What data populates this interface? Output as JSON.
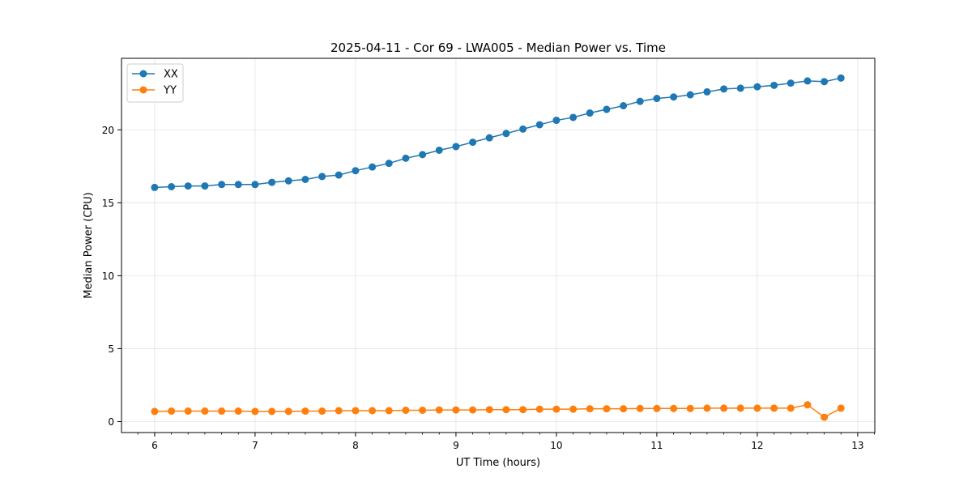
{
  "chart_data": {
    "type": "line",
    "title": "2025-04-11 - Cor 69 - LWA005 - Median Power vs. Time",
    "xlabel": "UT Time (hours)",
    "ylabel": "Median Power (CPU)",
    "xlim": [
      5.67,
      13.17
    ],
    "ylim": [
      -0.75,
      24.9
    ],
    "xticks": [
      6,
      7,
      8,
      9,
      10,
      11,
      12,
      13
    ],
    "yticks": [
      0,
      5,
      10,
      15,
      20
    ],
    "grid": true,
    "legend_position": "top-left",
    "x": [
      6.0,
      6.167,
      6.333,
      6.5,
      6.667,
      6.833,
      7.0,
      7.167,
      7.333,
      7.5,
      7.667,
      7.833,
      8.0,
      8.167,
      8.333,
      8.5,
      8.667,
      8.833,
      9.0,
      9.167,
      9.333,
      9.5,
      9.667,
      9.833,
      10.0,
      10.167,
      10.333,
      10.5,
      10.667,
      10.833,
      11.0,
      11.167,
      11.333,
      11.5,
      11.667,
      11.833,
      12.0,
      12.167,
      12.333,
      12.5,
      12.667,
      12.833
    ],
    "series": [
      {
        "name": "XX",
        "color": "#1f77b4",
        "values": [
          16.05,
          16.1,
          16.15,
          16.15,
          16.25,
          16.25,
          16.25,
          16.4,
          16.5,
          16.6,
          16.8,
          16.9,
          17.2,
          17.45,
          17.7,
          18.05,
          18.3,
          18.6,
          18.85,
          19.15,
          19.45,
          19.75,
          20.05,
          20.35,
          20.65,
          20.85,
          21.15,
          21.4,
          21.65,
          21.95,
          22.15,
          22.25,
          22.4,
          22.6,
          22.8,
          22.85,
          22.95,
          23.05,
          23.2,
          23.35,
          23.3,
          23.55
        ]
      },
      {
        "name": "YY",
        "color": "#ff7f0e",
        "values": [
          0.7,
          0.72,
          0.72,
          0.72,
          0.72,
          0.72,
          0.7,
          0.7,
          0.7,
          0.72,
          0.72,
          0.75,
          0.75,
          0.75,
          0.75,
          0.78,
          0.78,
          0.8,
          0.8,
          0.8,
          0.82,
          0.82,
          0.82,
          0.85,
          0.85,
          0.85,
          0.88,
          0.88,
          0.88,
          0.9,
          0.9,
          0.9,
          0.9,
          0.92,
          0.92,
          0.92,
          0.92,
          0.92,
          0.92,
          1.15,
          0.3,
          0.92
        ]
      }
    ]
  }
}
